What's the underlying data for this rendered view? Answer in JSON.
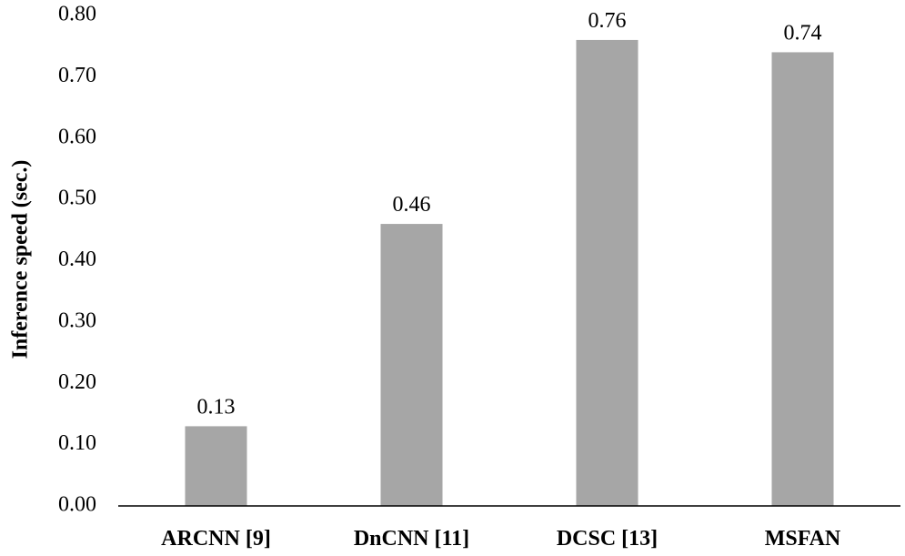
{
  "chart_data": {
    "type": "bar",
    "title": "",
    "xlabel": "",
    "ylabel": "Inference speed (sec.)",
    "categories": [
      "ARCNN [9]",
      "DnCNN [11]",
      "DCSC [13]",
      "MSFAN"
    ],
    "values": [
      0.13,
      0.46,
      0.76,
      0.74
    ],
    "data_labels": [
      "0.13",
      "0.46",
      "0.76",
      "0.74"
    ],
    "ylim": [
      0,
      0.8
    ],
    "yticks": [
      0.0,
      0.1,
      0.2,
      0.3,
      0.4,
      0.5,
      0.6,
      0.7,
      0.8
    ],
    "ytick_labels": [
      "0.00",
      "0.10",
      "0.20",
      "0.30",
      "0.40",
      "0.50",
      "0.60",
      "0.70",
      "0.80"
    ],
    "grid": false,
    "legend": "none",
    "colors": {
      "bar": "#a6a6a6",
      "axis": "#000000",
      "text": "#000000"
    }
  }
}
